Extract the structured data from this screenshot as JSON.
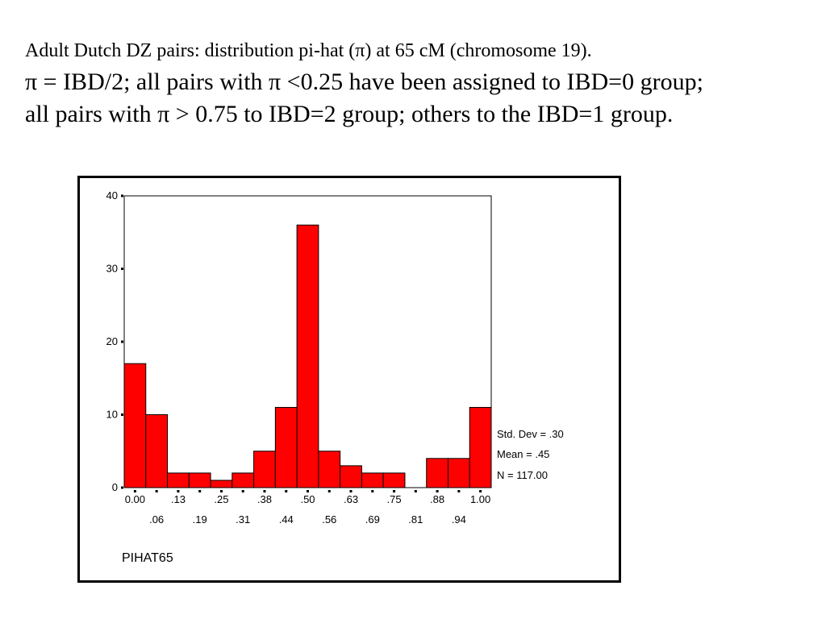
{
  "slide": {
    "line1": "Adult Dutch DZ pairs: distribution pi-hat (π) at 65 cM (chromosome 19).",
    "line2": "π = IBD/2; all pairs with π <0.25 have been assigned to IBD=0 group;",
    "line3": "all pairs with π > 0.75 to IBD=2 group; others to the IBD=1 group."
  },
  "chart_data": {
    "type": "bar",
    "variable": "PIHAT65",
    "categories": [
      "0.00",
      ".06",
      ".13",
      ".19",
      ".25",
      ".31",
      ".38",
      ".44",
      ".50",
      ".56",
      ".63",
      ".69",
      ".75",
      ".81",
      ".88",
      ".94",
      "1.00"
    ],
    "values": [
      17,
      10,
      2,
      2,
      1,
      2,
      5,
      11,
      36,
      5,
      3,
      2,
      2,
      0,
      4,
      4,
      11
    ],
    "ylim": [
      0,
      40
    ],
    "yticks": [
      "0",
      "10",
      "20",
      "30",
      "40"
    ],
    "bar_color": "#ff0000",
    "stats": {
      "std_dev": "Std. Dev = .30",
      "mean": "Mean = .45",
      "n": "N = 117.00"
    }
  }
}
